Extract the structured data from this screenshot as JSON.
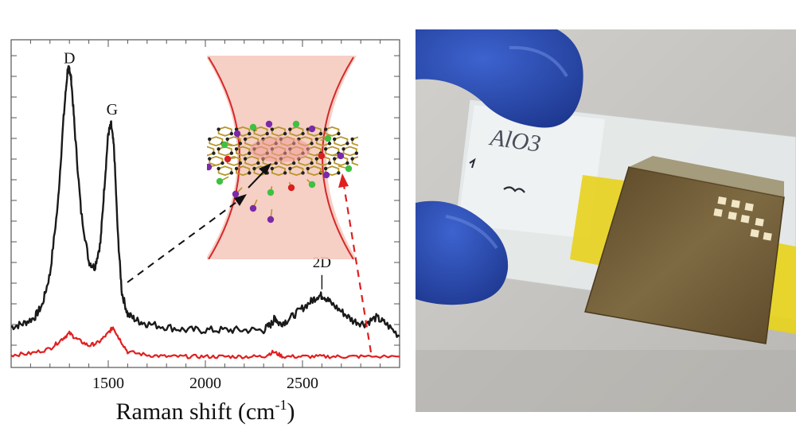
{
  "chart_data": {
    "type": "line",
    "xlabel": "Raman shift (cm",
    "xlabel_superscript": "-1",
    "xlabel_close": ")",
    "ylabel": "",
    "xlim": [
      1000,
      3000
    ],
    "ylim": [
      0,
      1
    ],
    "x_ticks": [
      1500,
      2000,
      2500
    ],
    "x_tick_labels": [
      "1500",
      "2000",
      "2500"
    ],
    "grid": false,
    "peak_labels": [
      {
        "text": "D",
        "x": 1300,
        "y": 0.94
      },
      {
        "text": "G",
        "x": 1520,
        "y": 0.78
      },
      {
        "text": "2D",
        "x": 2600,
        "y": 0.22
      }
    ],
    "series": [
      {
        "color": "#1a1a1a",
        "x": [
          1000,
          1060,
          1120,
          1160,
          1200,
          1240,
          1270,
          1290,
          1300,
          1310,
          1330,
          1360,
          1400,
          1430,
          1460,
          1480,
          1500,
          1515,
          1530,
          1550,
          1570,
          1600,
          1650,
          1700,
          1800,
          1900,
          2000,
          2100,
          2200,
          2300,
          2340,
          2360,
          2380,
          2420,
          2480,
          2540,
          2580,
          2610,
          2640,
          2700,
          2760,
          2820,
          2880,
          2930,
          3000
        ],
        "y": [
          0.13,
          0.14,
          0.16,
          0.2,
          0.3,
          0.52,
          0.8,
          0.95,
          0.96,
          0.92,
          0.74,
          0.5,
          0.34,
          0.32,
          0.4,
          0.58,
          0.75,
          0.78,
          0.7,
          0.42,
          0.24,
          0.17,
          0.15,
          0.14,
          0.13,
          0.12,
          0.12,
          0.12,
          0.12,
          0.12,
          0.14,
          0.16,
          0.14,
          0.15,
          0.18,
          0.21,
          0.23,
          0.23,
          0.21,
          0.18,
          0.15,
          0.14,
          0.16,
          0.14,
          0.1
        ]
      },
      {
        "color": "#e02020",
        "x": [
          1000,
          1100,
          1200,
          1260,
          1300,
          1340,
          1400,
          1450,
          1500,
          1525,
          1550,
          1600,
          1700,
          1800,
          1900,
          2000,
          2100,
          2200,
          2300,
          2350,
          2400,
          2500,
          2600,
          2700,
          2800,
          3000
        ],
        "y": [
          0.04,
          0.045,
          0.06,
          0.09,
          0.11,
          0.09,
          0.07,
          0.08,
          0.11,
          0.13,
          0.1,
          0.05,
          0.04,
          0.035,
          0.035,
          0.035,
          0.035,
          0.035,
          0.035,
          0.05,
          0.035,
          0.035,
          0.035,
          0.035,
          0.035,
          0.035
        ]
      }
    ]
  },
  "photo": {
    "annotation": "AlO3"
  },
  "colors": {
    "black_curve": "#1a1a1a",
    "red_curve": "#e02020",
    "inset_fill": "#f4c7bb",
    "inset_border": "#d6282a",
    "glove": "#2a4db5",
    "bond": "#b8972c",
    "atom_green": "#40c040",
    "atom_purple": "#7a2aa8",
    "atom_red": "#d82020",
    "film": "#6d5a32",
    "tape": "#e7d21c"
  }
}
